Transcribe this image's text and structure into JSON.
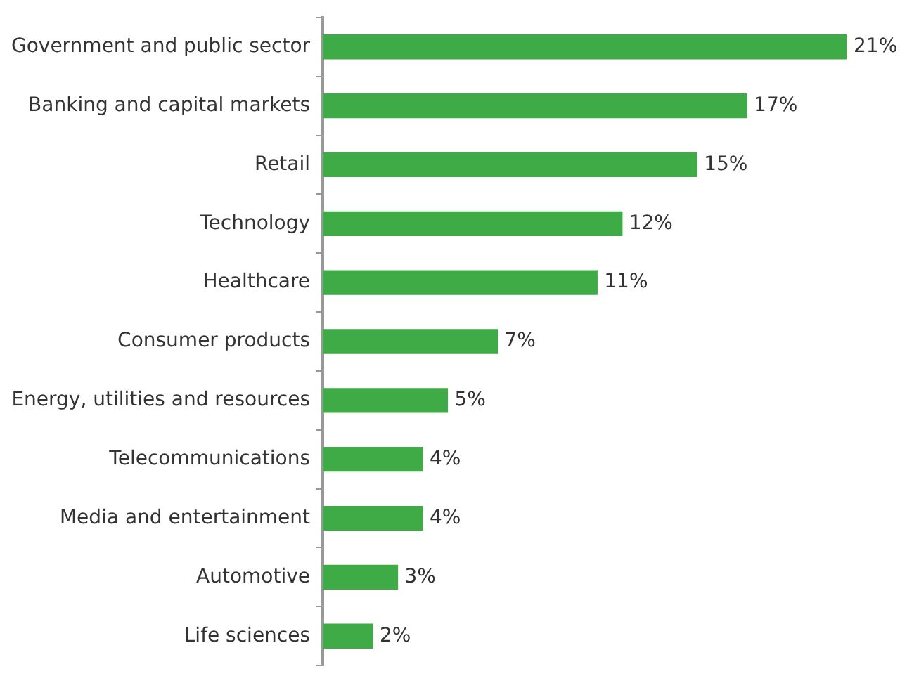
{
  "chart_data": {
    "type": "bar",
    "orientation": "horizontal",
    "categories": [
      "Government and public sector",
      "Banking and capital markets",
      "Retail",
      "Technology",
      "Healthcare",
      "Consumer products",
      "Energy, utilities and resources",
      "Telecommunications",
      "Media and entertainment",
      "Automotive",
      "Life sciences"
    ],
    "values": [
      21,
      17,
      15,
      12,
      11,
      7,
      5,
      4,
      4,
      3,
      2
    ],
    "value_labels": [
      "21%",
      "17%",
      "15%",
      "12%",
      "11%",
      "7%",
      "5%",
      "4%",
      "4%",
      "3%",
      "2%"
    ],
    "color": "#3fab47"
  }
}
